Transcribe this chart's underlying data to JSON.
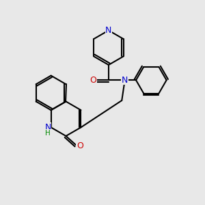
{
  "background_color": "#e8e8e8",
  "figsize": [
    3.0,
    3.0
  ],
  "dpi": 100,
  "bond_color": "#000000",
  "bond_width": 1.5,
  "atom_colors": {
    "N": "#0000cc",
    "O": "#cc0000",
    "C": "#000000",
    "H": "#008800"
  }
}
